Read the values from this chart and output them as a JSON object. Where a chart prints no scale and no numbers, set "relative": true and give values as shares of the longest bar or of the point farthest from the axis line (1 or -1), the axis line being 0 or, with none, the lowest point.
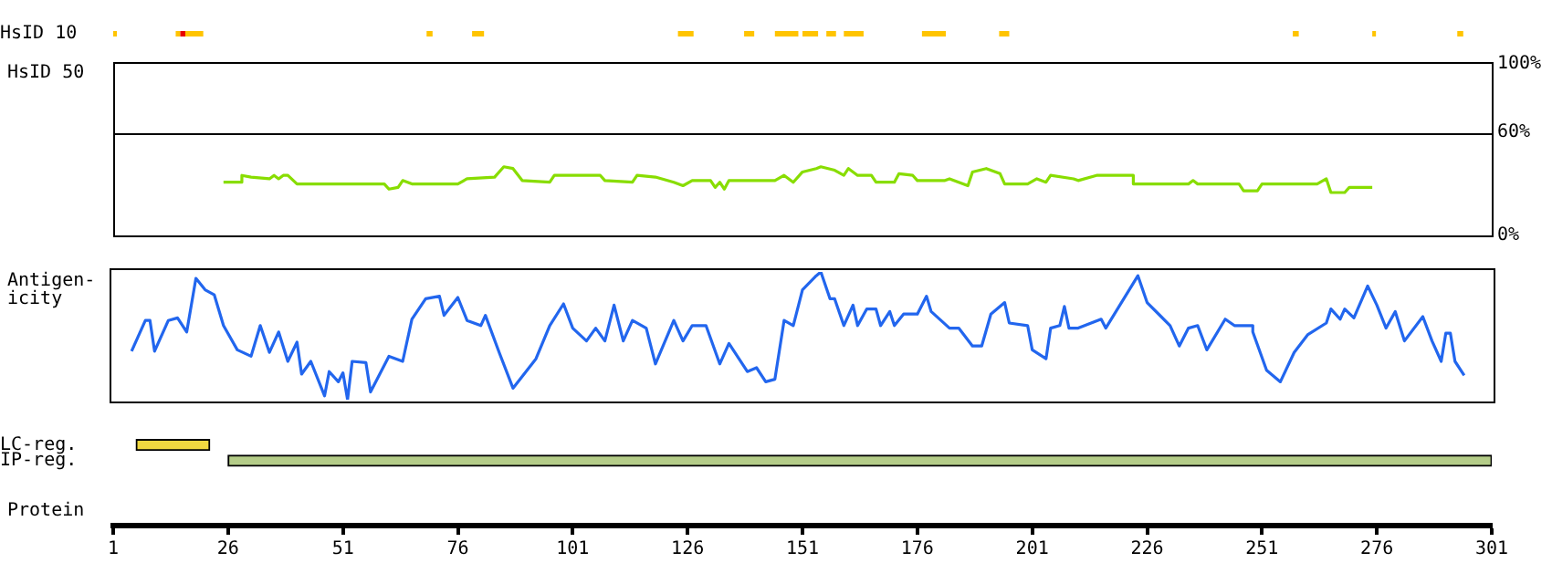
{
  "chart_data": [
    {
      "type": "bar",
      "orientation": "horizontal",
      "categories": [
        "HsID 10"
      ],
      "xlim": [
        1,
        301
      ],
      "tick_labels": "y",
      "bands": [
        {
          "axis": "x",
          "from": 1,
          "to": 1.8,
          "color": "#ffc400"
        },
        {
          "axis": "x",
          "from": 14.6,
          "to": 15.6,
          "color": "#ffc400"
        },
        {
          "axis": "x",
          "from": 15.6,
          "to": 16.7,
          "color": "#e80000"
        },
        {
          "axis": "x",
          "from": 16.7,
          "to": 20.6,
          "color": "#ffc400"
        },
        {
          "axis": "x",
          "from": 69.2,
          "to": 70.5,
          "color": "#ffc400"
        },
        {
          "axis": "x",
          "from": 79.1,
          "to": 81.7,
          "color": "#ffc400"
        },
        {
          "axis": "x",
          "from": 123.9,
          "to": 127.3,
          "color": "#ffc400"
        },
        {
          "axis": "x",
          "from": 138.3,
          "to": 140.5,
          "color": "#ffc400"
        },
        {
          "axis": "x",
          "from": 145,
          "to": 150.1,
          "color": "#ffc400"
        },
        {
          "axis": "x",
          "from": 151,
          "to": 154.4,
          "color": "#ffc400"
        },
        {
          "axis": "x",
          "from": 156.2,
          "to": 158.3,
          "color": "#ffc400"
        },
        {
          "axis": "x",
          "from": 160,
          "to": 164.3,
          "color": "#ffc400"
        },
        {
          "axis": "x",
          "from": 177,
          "to": 182.2,
          "color": "#ffc400"
        },
        {
          "axis": "x",
          "from": 193.8,
          "to": 196,
          "color": "#ffc400"
        },
        {
          "axis": "x",
          "from": 257.7,
          "to": 259,
          "color": "#ffc400"
        },
        {
          "axis": "x",
          "from": 275,
          "to": 275.8,
          "color": "#ffc400"
        },
        {
          "axis": "x",
          "from": 293.5,
          "to": 294.8,
          "color": "#ffc400"
        }
      ]
    },
    {
      "type": "line",
      "ylabel": "HsID 50",
      "xlim": [
        1,
        301
      ],
      "ylim": [
        0,
        100
      ],
      "yticks": [
        {
          "value": 0,
          "label": "0%"
        },
        {
          "value": 60,
          "label": "60%"
        },
        {
          "value": 100,
          "label": "100%"
        }
      ],
      "tick_labels": "y",
      "ref_lines": [
        {
          "axis": "y",
          "value": 60,
          "color": "#000000"
        }
      ],
      "x": [
        25,
        29,
        29,
        31,
        35,
        36,
        37,
        38,
        39,
        41,
        60,
        61,
        63,
        64,
        66,
        76,
        78,
        84,
        86,
        88,
        90,
        96,
        97,
        107,
        108,
        114,
        115,
        119,
        123,
        125,
        127,
        131,
        132,
        133,
        134,
        135,
        145,
        147,
        149,
        151,
        154,
        155,
        158,
        160,
        161,
        163,
        166,
        167,
        171,
        172,
        175,
        176,
        182,
        183,
        185,
        187,
        188,
        191,
        194,
        195,
        200,
        202,
        204,
        205,
        210,
        211,
        215,
        223,
        223,
        235,
        236,
        237,
        246,
        247,
        250,
        251,
        263,
        265,
        266,
        269,
        270,
        275
      ],
      "series": [
        {
          "color": "#88dd00",
          "values": [
            31,
            31,
            35,
            34,
            33,
            35,
            33,
            35,
            35,
            30,
            30,
            27,
            28,
            32,
            30,
            30,
            33,
            34,
            40,
            39,
            32,
            31,
            35,
            35,
            32,
            31,
            35,
            34,
            31,
            29,
            32,
            32,
            28,
            31,
            27,
            32,
            32,
            35,
            31,
            37,
            39,
            40,
            38,
            35,
            39,
            35,
            35,
            31,
            31,
            36,
            35,
            32,
            32,
            33,
            31,
            29,
            37,
            39,
            36,
            30,
            30,
            33,
            31,
            35,
            33,
            32,
            35,
            35,
            30,
            30,
            32,
            30,
            30,
            26,
            26,
            30,
            30,
            33,
            25,
            25,
            28,
            28
          ]
        }
      ]
    },
    {
      "type": "line",
      "ylabel": "Antigen-\nicity",
      "relative": true,
      "xlim": [
        1,
        301
      ],
      "tick_labels": false,
      "x": [
        5,
        8,
        9,
        10,
        11,
        13,
        15,
        17,
        19,
        21,
        23,
        25,
        28,
        31,
        33,
        35,
        37,
        39,
        41,
        42,
        44,
        47,
        48,
        50,
        51,
        52,
        53,
        56,
        57,
        61,
        64,
        66,
        69,
        72,
        73,
        76,
        78,
        81,
        82,
        85,
        88,
        93,
        96,
        99,
        101,
        104,
        106,
        108,
        110,
        112,
        114,
        117,
        119,
        123,
        125,
        127,
        130,
        133,
        135,
        139,
        141,
        143,
        145,
        147,
        149,
        151,
        154,
        155,
        157,
        158,
        160,
        162,
        163,
        165,
        167,
        168,
        170,
        171,
        173,
        176,
        178,
        179,
        183,
        185,
        188,
        190,
        192,
        195,
        196,
        200,
        201,
        204,
        205,
        207,
        208,
        209,
        211,
        216,
        217,
        224,
        226,
        231,
        233,
        235,
        237,
        239,
        243,
        245,
        249,
        249,
        252,
        255,
        258,
        261,
        265,
        266,
        268,
        269,
        271,
        274,
        276,
        278,
        280,
        282,
        286,
        288,
        290,
        291,
        292,
        293,
        295
      ],
      "series": [
        {
          "color": "#2266ee",
          "values": [
            0.38,
            0.62,
            0.62,
            0.38,
            0.46,
            0.62,
            0.64,
            0.53,
            0.95,
            0.86,
            0.82,
            0.58,
            0.39,
            0.34,
            0.58,
            0.37,
            0.53,
            0.3,
            0.45,
            0.2,
            0.3,
            0.03,
            0.22,
            0.14,
            0.21,
            0,
            0.3,
            0.29,
            0.06,
            0.34,
            0.3,
            0.63,
            0.79,
            0.81,
            0.66,
            0.8,
            0.62,
            0.58,
            0.66,
            0.37,
            0.09,
            0.32,
            0.58,
            0.75,
            0.56,
            0.46,
            0.56,
            0.46,
            0.74,
            0.46,
            0.62,
            0.56,
            0.28,
            0.62,
            0.46,
            0.58,
            0.58,
            0.28,
            0.44,
            0.22,
            0.25,
            0.14,
            0.16,
            0.62,
            0.58,
            0.86,
            0.97,
            1,
            0.79,
            0.79,
            0.58,
            0.74,
            0.58,
            0.71,
            0.71,
            0.58,
            0.69,
            0.58,
            0.67,
            0.67,
            0.81,
            0.69,
            0.56,
            0.56,
            0.42,
            0.42,
            0.67,
            0.76,
            0.6,
            0.58,
            0.39,
            0.32,
            0.56,
            0.58,
            0.73,
            0.56,
            0.56,
            0.63,
            0.56,
            0.97,
            0.76,
            0.58,
            0.42,
            0.56,
            0.58,
            0.39,
            0.63,
            0.58,
            0.58,
            0.53,
            0.23,
            0.14,
            0.37,
            0.51,
            0.6,
            0.71,
            0.63,
            0.71,
            0.64,
            0.89,
            0.74,
            0.56,
            0.69,
            0.46,
            0.65,
            0.46,
            0.3,
            0.52,
            0.52,
            0.3,
            0.19
          ]
        }
      ]
    },
    {
      "type": "bar",
      "orientation": "horizontal",
      "categories": [
        "LC-reg.",
        "IP-reg."
      ],
      "base": [
        6,
        26
      ],
      "values": [
        16,
        275
      ],
      "colors": [
        "#f0d840",
        "#b4cc88"
      ],
      "xlim": [
        1,
        301
      ],
      "xticks": [
        1,
        26,
        51,
        76,
        101,
        126,
        151,
        176,
        201,
        226,
        251,
        276,
        301
      ],
      "xlabel": "Protein"
    }
  ]
}
